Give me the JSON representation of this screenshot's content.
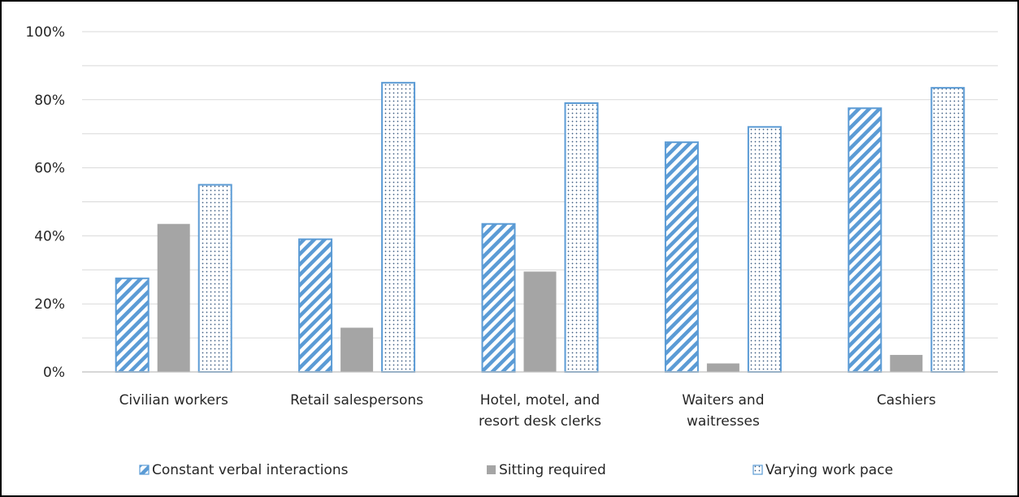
{
  "chart_data": {
    "type": "bar",
    "title": "",
    "xlabel": "",
    "ylabel": "",
    "ylim": [
      0,
      100
    ],
    "yticks": [
      "0%",
      "20%",
      "40%",
      "60%",
      "80%",
      "100%"
    ],
    "grid": true,
    "legend_position": "bottom",
    "categories": [
      [
        "Civilian workers"
      ],
      [
        "Retail salespersons"
      ],
      [
        "Hotel, motel, and",
        "resort desk clerks"
      ],
      [
        "Waiters and",
        "waitresses"
      ],
      [
        "Cashiers"
      ]
    ],
    "series": [
      {
        "name": "Constant verbal interactions",
        "pattern": "diagonal-hatch",
        "color": "#5B9BD5",
        "values": [
          27.5,
          39,
          43.5,
          67.5,
          77.5
        ]
      },
      {
        "name": "Sitting required",
        "pattern": "solid",
        "color": "#A5A5A5",
        "values": [
          43.5,
          13,
          29.5,
          2.5,
          5
        ]
      },
      {
        "name": "Varying work pace",
        "pattern": "dots",
        "color": "#5B9BD5",
        "values": [
          55,
          85,
          79,
          72,
          83.5
        ]
      }
    ]
  }
}
